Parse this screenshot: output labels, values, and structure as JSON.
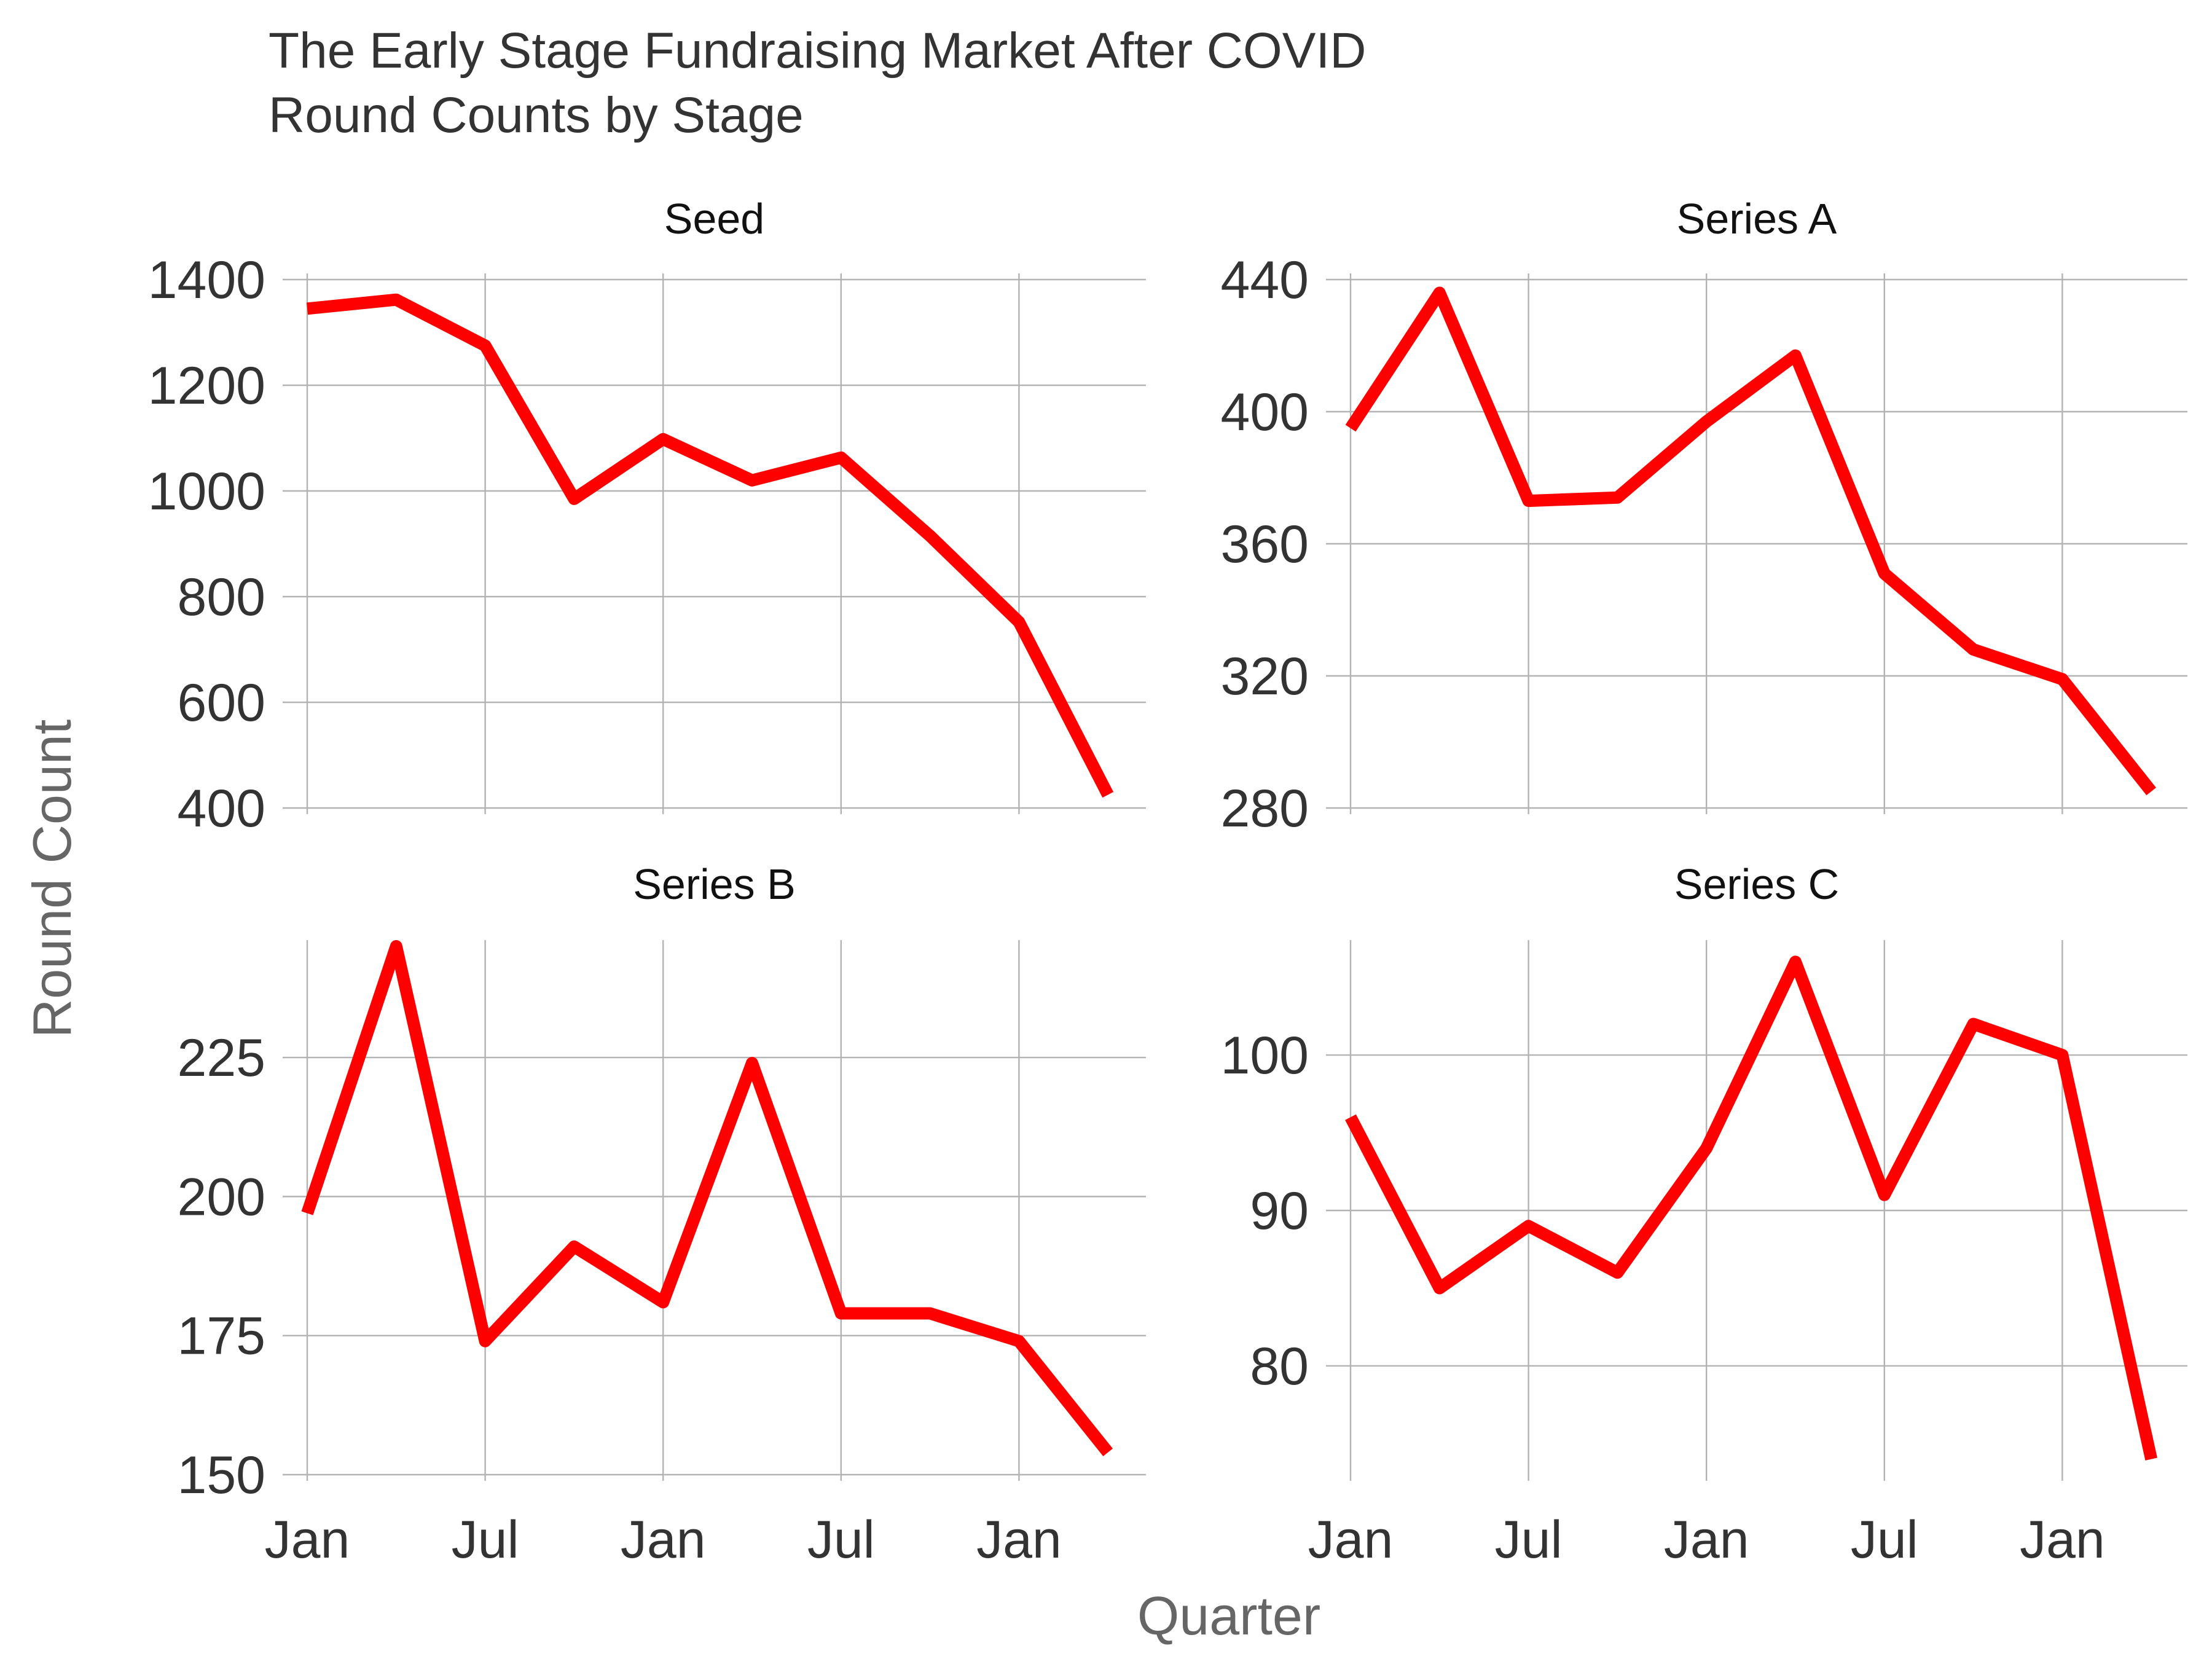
{
  "colors": {
    "line": "#ff0000",
    "grid": "#b3b3b3"
  },
  "chart_data": {
    "type": "line",
    "title": "The Early Stage Fundraising Market After COVID",
    "subtitle": "Round Counts by Stage",
    "xlabel": "Quarter",
    "ylabel": "Round Count",
    "grid": true,
    "legend": "none",
    "x": [
      "2020-01",
      "2020-04",
      "2020-07",
      "2020-10",
      "2021-01",
      "2021-04",
      "2021-07",
      "2021-10",
      "2022-01",
      "2022-04"
    ],
    "x_tick_labels": [
      "Jan",
      "Jul",
      "Jan",
      "Jul",
      "Jan"
    ],
    "x_tick_positions": [
      "2020-01",
      "2020-07",
      "2021-01",
      "2021-07",
      "2022-01"
    ],
    "facets": [
      {
        "strip": "Seed",
        "values": [
          1345,
          1362,
          1275,
          985,
          1098,
          1020,
          1063,
          915,
          752,
          425
        ],
        "ylim": [
          400,
          1400
        ],
        "yticks": [
          400,
          600,
          800,
          1000,
          1200,
          1400
        ]
      },
      {
        "strip": "Series A",
        "values": [
          395,
          436,
          373,
          374,
          397,
          417,
          351,
          328,
          319,
          285
        ],
        "ylim": [
          280,
          440
        ],
        "yticks": [
          280,
          320,
          360,
          400,
          440
        ]
      },
      {
        "strip": "Series B",
        "values": [
          197,
          245,
          174,
          191,
          181,
          224,
          179,
          179,
          174,
          154
        ],
        "ylim": [
          150,
          245
        ],
        "yticks": [
          150,
          175,
          200,
          225
        ]
      },
      {
        "strip": "Series C",
        "values": [
          96,
          85,
          89,
          86,
          94,
          106,
          91,
          102,
          100,
          74
        ],
        "ylim": [
          73,
          107
        ],
        "yticks": [
          80,
          90,
          100
        ]
      }
    ]
  }
}
